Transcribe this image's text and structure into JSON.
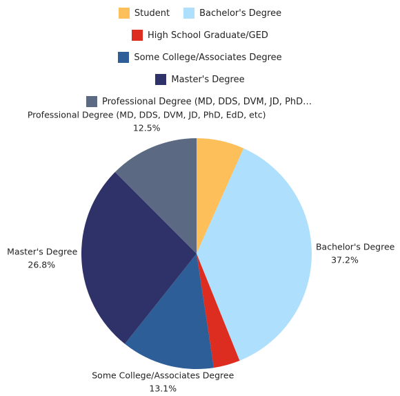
{
  "chart_data": {
    "type": "pie",
    "categories": [
      "Student",
      "Bachelor's Degree",
      "High School Graduate/GED",
      "Some College/Associates Degree",
      "Master's Degree",
      "Professional Degree (MD, DDS, DVM, JD, PhD, EdD, etc)"
    ],
    "values": [
      6.7,
      37.2,
      3.7,
      13.1,
      26.8,
      12.5
    ],
    "value_labels": [
      null,
      "37.2%",
      null,
      "13.1%",
      "26.8%",
      "12.5%"
    ],
    "colors": [
      "#fdbf5a",
      "#aee0fd",
      "#dd2c20",
      "#2e5e98",
      "#2f3268",
      "#5b6a82"
    ],
    "legend": "top"
  }
}
